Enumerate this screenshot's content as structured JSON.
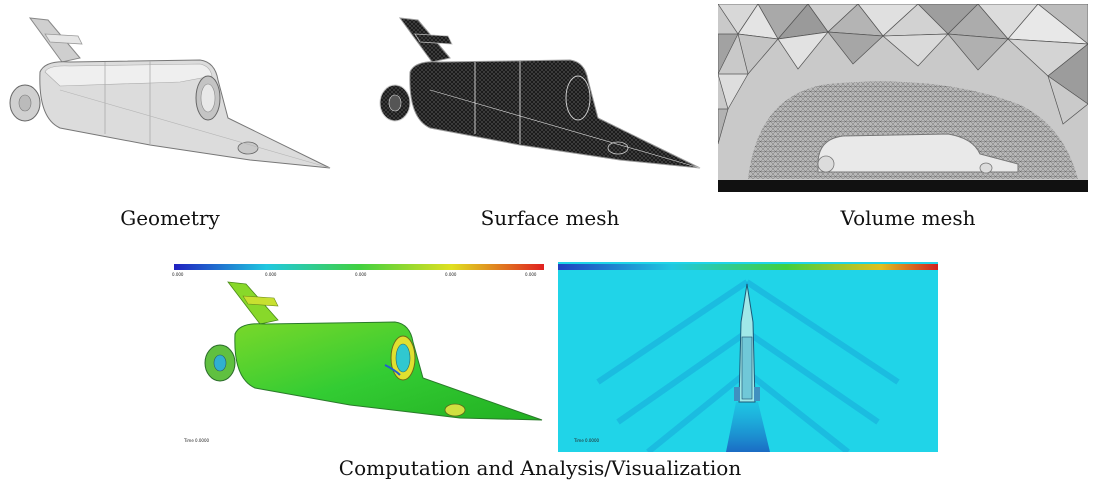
{
  "panels": {
    "geometry": {
      "caption": "Geometry"
    },
    "surface_mesh": {
      "caption": "Surface mesh"
    },
    "volume_mesh": {
      "caption": "Volume mesh"
    },
    "analysis": {
      "caption": "Computation and Analysis/Visualization"
    }
  },
  "colors": {
    "geometry_body": "#d9d9d9",
    "surface_body": "#2b2b2b",
    "volume_background": "#bdbdbd",
    "cfd_surface": "#33cc33",
    "cfd_field": "#20d4e8"
  },
  "icons": [
    "car-geometry-icon",
    "surface-mesh-icon",
    "volume-mesh-icon",
    "cfd-surface-icon",
    "cfd-field-icon"
  ]
}
